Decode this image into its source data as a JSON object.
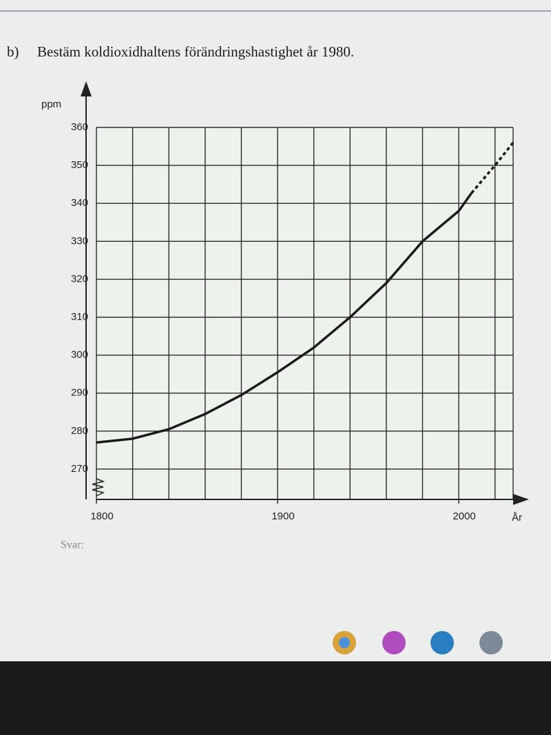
{
  "question": {
    "label": "b)",
    "text": "Bestäm koldioxidhaltens förändringshastighet år 1980."
  },
  "answer_label": "Svar:",
  "chart_data": {
    "type": "line",
    "y_label": "ppm",
    "x_label": "År",
    "xlim": [
      1800,
      2030
    ],
    "xticks": [
      1800,
      1900,
      2000
    ],
    "x_gridlines": [
      1800,
      1820,
      1840,
      1860,
      1880,
      1900,
      1920,
      1940,
      1960,
      1980,
      2000,
      2020,
      2030
    ],
    "ylim": [
      262,
      360
    ],
    "yticks": [
      270,
      280,
      290,
      300,
      310,
      320,
      330,
      340,
      350,
      360
    ],
    "grid": true,
    "series": [
      {
        "style": "solid",
        "color": "#1a1a1a",
        "x": [
          1800,
          1820,
          1840,
          1860,
          1880,
          1900,
          1920,
          1940,
          1960,
          1980,
          2000,
          2007
        ],
        "values": [
          277,
          278,
          280.5,
          284.5,
          289.5,
          295.5,
          302,
          310,
          319,
          330,
          338,
          342.7
        ]
      },
      {
        "style": "dashed",
        "color": "#1a1a1a",
        "x": [
          2007,
          2020,
          2030
        ],
        "values": [
          342.7,
          350,
          356
        ]
      }
    ]
  }
}
